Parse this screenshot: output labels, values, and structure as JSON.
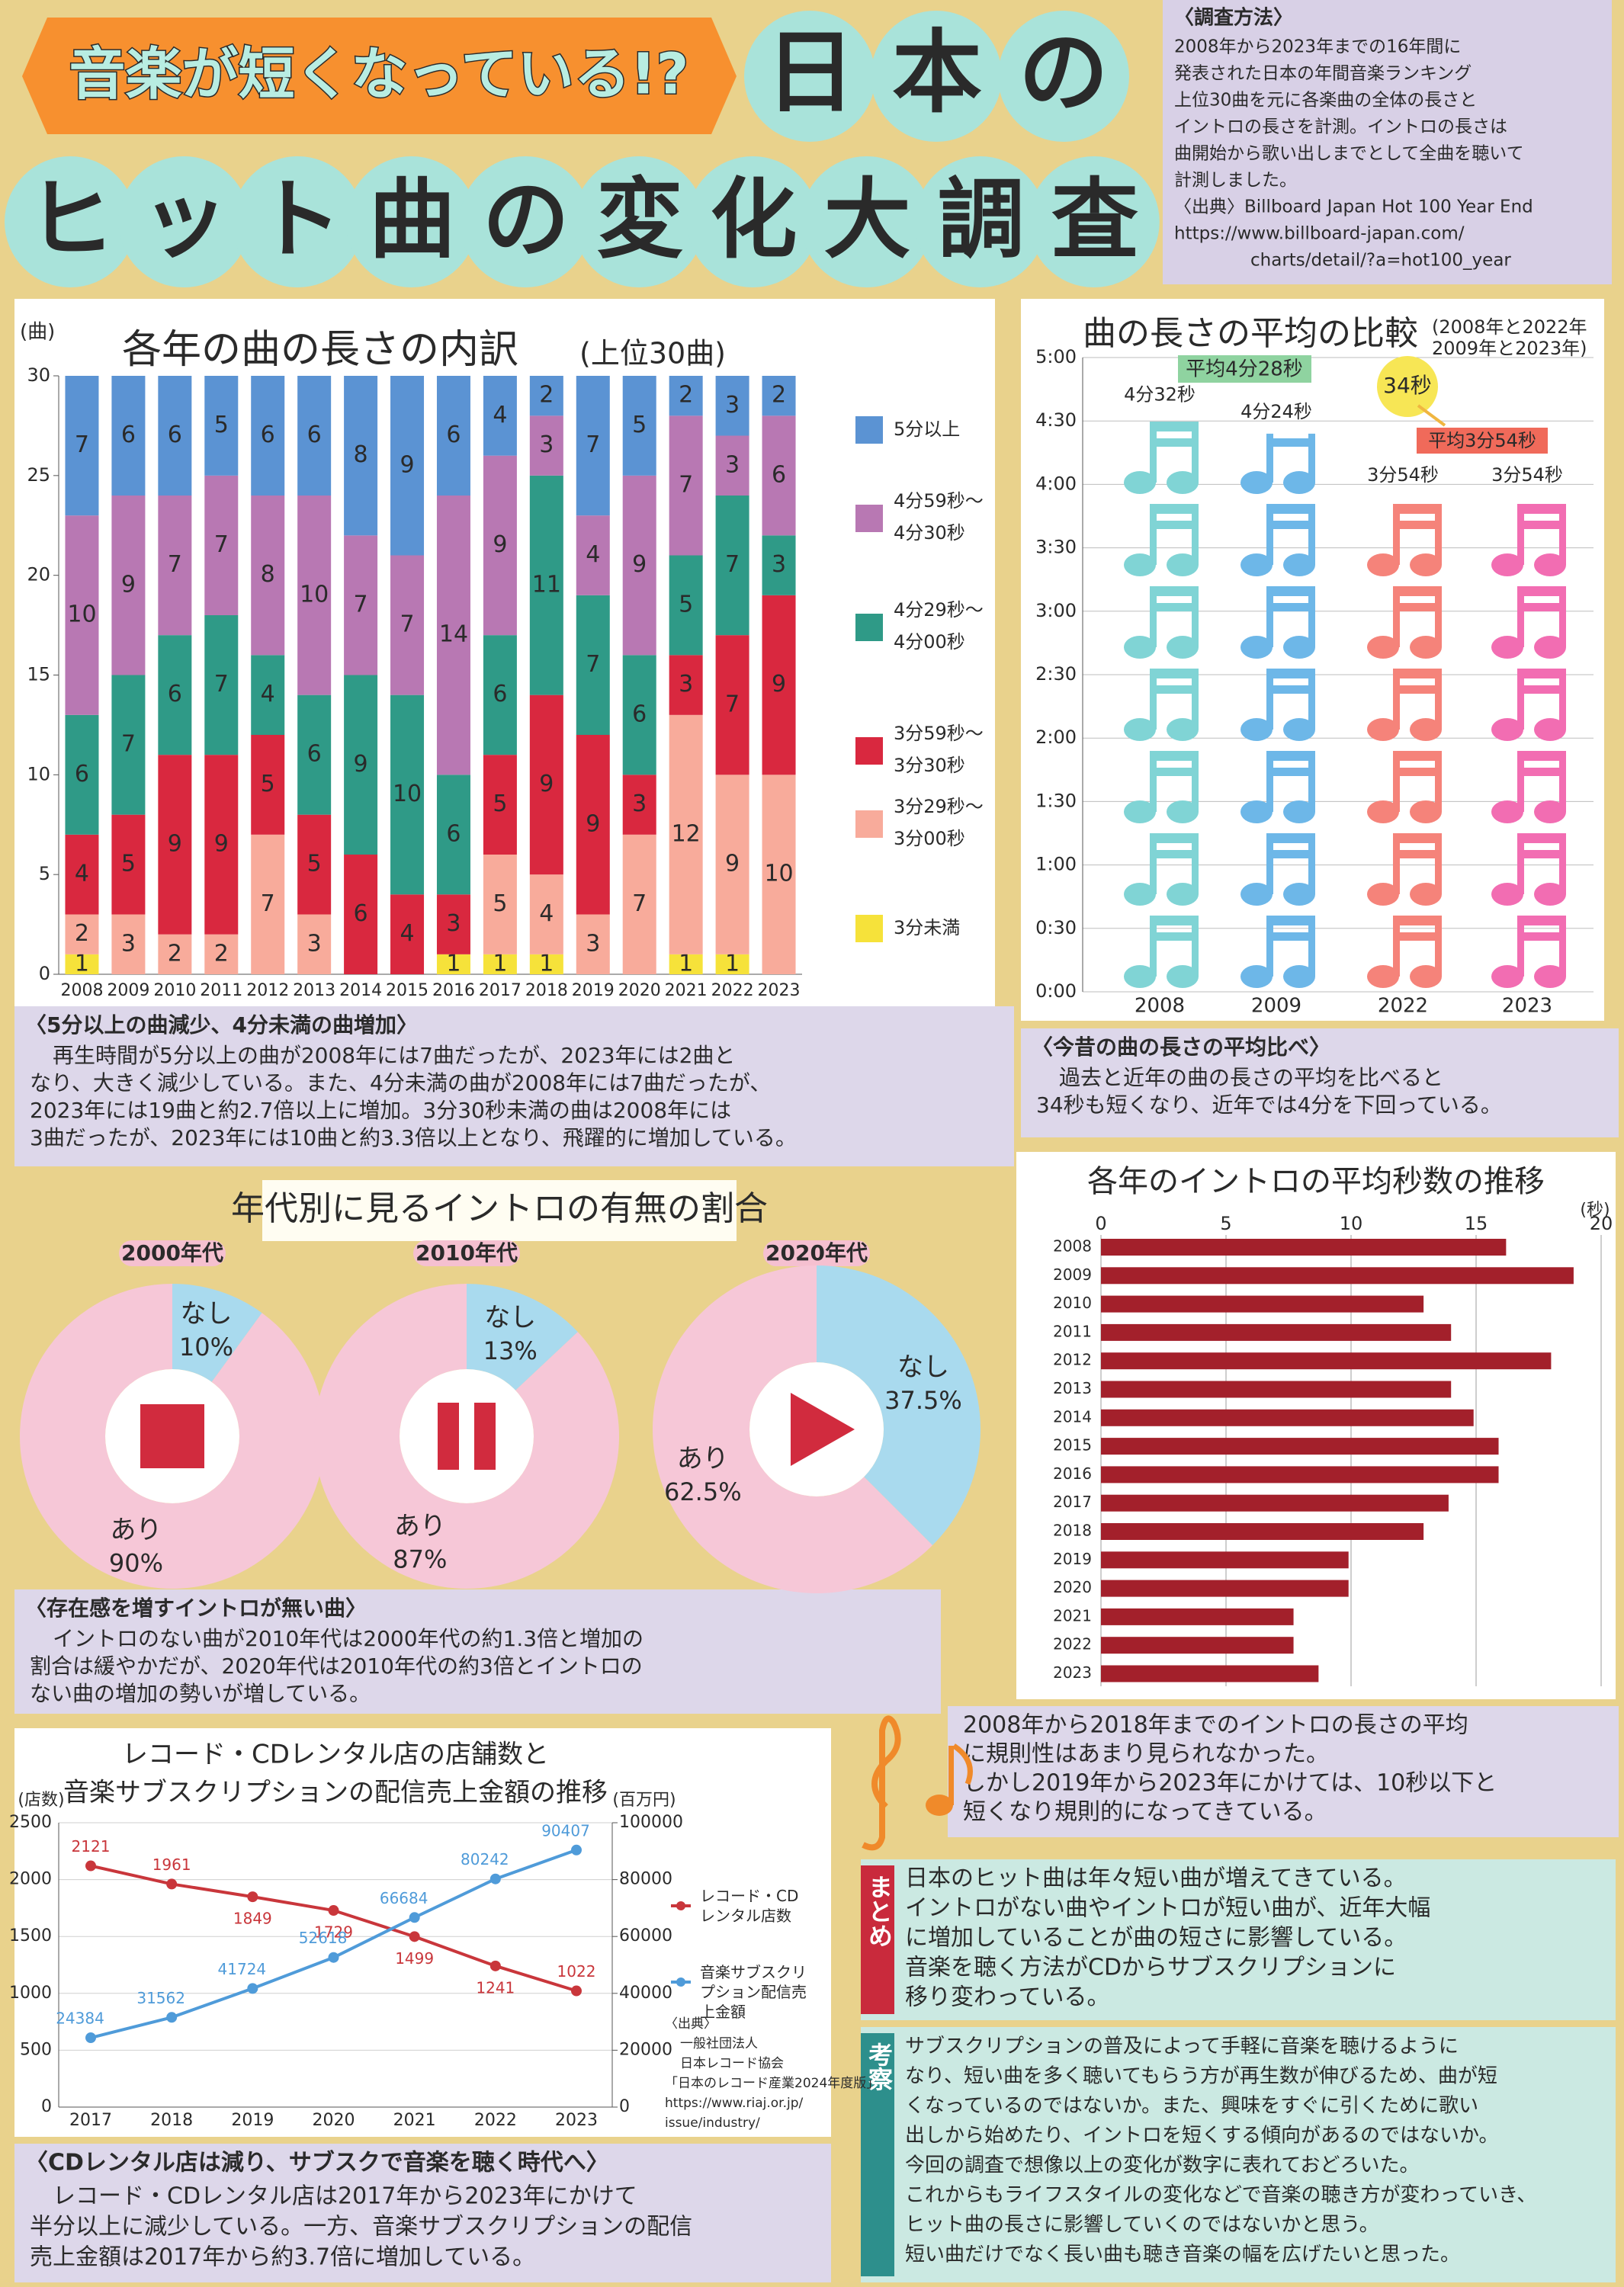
{
  "header": {
    "catch": "音楽が短くなっている!?",
    "title_1": "日本の",
    "title_2": "ヒット曲の変化大調査"
  },
  "method": {
    "heading": "〈調査方法〉",
    "lines": [
      "2008年から2023年までの16年間に",
      "発表された日本の年間音楽ランキング",
      "上位30曲を元に各楽曲の全体の長さと",
      "イントロの長さを計測。イントロの長さは",
      "曲開始から歌い出しまでとして全曲を聴いて",
      "計測しました。",
      "〈出典〉Billboard Japan Hot 100 Year End",
      "https://www.billboard-japan.com/",
      "charts/detail/?a=hot100_year"
    ]
  },
  "chart_data": [
    {
      "type": "bar",
      "stacked": true,
      "title": "各年の曲の長さの内訳",
      "subtitle": "(上位30曲)",
      "y_label": "(曲)",
      "categories": [
        "2008",
        "2009",
        "2010",
        "2011",
        "2012",
        "2013",
        "2014",
        "2015",
        "2016",
        "2017",
        "2018",
        "2019",
        "2020",
        "2021",
        "2022",
        "2023"
      ],
      "series": [
        {
          "name": "5分以上",
          "color": "#5b93d3",
          "values": [
            7,
            6,
            6,
            5,
            6,
            6,
            8,
            9,
            6,
            4,
            2,
            7,
            5,
            2,
            3,
            2
          ]
        },
        {
          "name": "4分59秒〜4分30秒",
          "color": "#b878b3",
          "values": [
            10,
            9,
            7,
            7,
            8,
            10,
            7,
            7,
            14,
            9,
            3,
            4,
            9,
            7,
            3,
            6
          ]
        },
        {
          "name": "4分29秒〜4分00秒",
          "color": "#2f9a87",
          "values": [
            6,
            7,
            6,
            7,
            4,
            6,
            9,
            10,
            6,
            6,
            11,
            7,
            6,
            5,
            7,
            3
          ]
        },
        {
          "name": "3分59秒〜3分30秒",
          "color": "#d9283f",
          "values": [
            4,
            5,
            9,
            9,
            5,
            5,
            6,
            4,
            3,
            5,
            9,
            9,
            3,
            3,
            7,
            9
          ]
        },
        {
          "name": "3分29秒〜3分00秒",
          "color": "#f8ab9b",
          "values": [
            2,
            3,
            2,
            2,
            7,
            3,
            0,
            0,
            0,
            5,
            4,
            3,
            7,
            12,
            9,
            10
          ]
        },
        {
          "name": "3分未満",
          "color": "#f6e23a",
          "values": [
            1,
            0,
            0,
            0,
            0,
            0,
            0,
            0,
            1,
            1,
            1,
            0,
            0,
            1,
            1,
            0
          ]
        }
      ],
      "ylim": [
        0,
        30
      ],
      "yticks": [
        0,
        5,
        10,
        15,
        20,
        25,
        30
      ]
    },
    {
      "type": "pictogram",
      "title": "曲の長さの平均の比較",
      "subtitle": [
        "(2008年と2022年",
        "2009年と2023年)"
      ],
      "categories": [
        "2008",
        "2009",
        "2022",
        "2023"
      ],
      "values": [
        272,
        264,
        234,
        234
      ],
      "value_labels": [
        "4分32秒",
        "4分24秒",
        "3分54秒",
        "3分54秒"
      ],
      "colors": [
        "#80d4d5",
        "#6db7e8",
        "#f5837a",
        "#f26db2"
      ],
      "ylim": [
        0,
        300
      ],
      "yticks": [
        {
          "value": 0,
          "label": "0:00"
        },
        {
          "value": 30,
          "label": "0:30"
        },
        {
          "value": 60,
          "label": "1:00"
        },
        {
          "value": 90,
          "label": "1:30"
        },
        {
          "value": 120,
          "label": "2:00"
        },
        {
          "value": 150,
          "label": "2:30"
        },
        {
          "value": 180,
          "label": "3:00"
        },
        {
          "value": 210,
          "label": "3:30"
        },
        {
          "value": 240,
          "label": "4:00"
        },
        {
          "value": 270,
          "label": "4:30"
        },
        {
          "value": 300,
          "label": "5:00"
        }
      ],
      "grid": true,
      "annotations": [
        "平均4分28秒",
        "34秒",
        "平均3分54秒"
      ]
    },
    {
      "type": "donut",
      "title": "年代別に見るイントロの有無の割合",
      "colors": [
        "#a9daee",
        "#f6c7d7"
      ],
      "groups": [
        {
          "name": "2000年代",
          "categories": [
            "なし",
            "あり"
          ],
          "values": [
            10,
            90
          ],
          "value_labels": [
            "10%",
            "90%"
          ]
        },
        {
          "name": "2010年代",
          "categories": [
            "なし",
            "あり"
          ],
          "values": [
            13,
            87
          ],
          "value_labels": [
            "13%",
            "87%"
          ]
        },
        {
          "name": "2020年代",
          "categories": [
            "なし",
            "あり"
          ],
          "values": [
            37.5,
            62.5
          ],
          "value_labels": [
            "37.5%",
            "62.5%"
          ]
        }
      ]
    },
    {
      "type": "bar",
      "orientation": "horizontal",
      "title": "各年のイントロの平均秒数の推移",
      "x_label": "(秒)",
      "categories": [
        "2008",
        "2009",
        "2010",
        "2011",
        "2012",
        "2013",
        "2014",
        "2015",
        "2016",
        "2017",
        "2018",
        "2019",
        "2020",
        "2021",
        "2022",
        "2023"
      ],
      "values": [
        16.2,
        18.9,
        12.9,
        14,
        18,
        14,
        14.9,
        15.9,
        15.9,
        13.9,
        12.9,
        9.9,
        9.9,
        7.7,
        7.7,
        8.7
      ],
      "color": "#a3202b",
      "xlim": [
        0,
        20
      ],
      "xticks": [
        0,
        5,
        10,
        15,
        20
      ],
      "grid": true
    },
    {
      "type": "line",
      "title": [
        "レコード・CDレンタル店の店舗数と",
        "音楽サブスクリプションの配信売上金額の推移"
      ],
      "y_label": "(店数)",
      "y2_label": "(百万円)",
      "categories": [
        "2017",
        "2018",
        "2019",
        "2020",
        "2021",
        "2022",
        "2023"
      ],
      "series": [
        {
          "name": "レコード・CDレンタル店数",
          "color": "#c9363b",
          "values": [
            2121,
            1961,
            1849,
            1729,
            1499,
            1241,
            1022
          ]
        },
        {
          "name": "音楽サブスクリプション配信売上金額",
          "color": "#4f9bd9",
          "axis": "y2",
          "values": [
            24384,
            31562,
            41724,
            52618,
            66684,
            80242,
            90407
          ]
        }
      ],
      "ylim": [
        0,
        2500
      ],
      "yticks": [
        0,
        500,
        1000,
        1500,
        2000,
        2500
      ],
      "y2lim": [
        0,
        100000
      ],
      "y2ticks": [
        0,
        20000,
        40000,
        60000,
        80000,
        100000
      ],
      "grid": true,
      "source": [
        "〈出典〉",
        "一般社団法人",
        "日本レコード協会",
        "「日本のレコード産業2024年度版」",
        "https://www.riaj.or.jp/",
        "issue/industry/"
      ]
    }
  ],
  "notes": [
    {
      "heading": "〈5分以上の曲減少、4分未満の曲増加〉",
      "lines": [
        "再生時間が5分以上の曲が2008年には7曲だったが、2023年には2曲と",
        "なり、大きく減少している。また、4分未満の曲が2008年には7曲だったが、",
        "2023年には19曲と約2.7倍以上に増加。3分30秒未満の曲は2008年には",
        "3曲だったが、2023年には10曲と約3.3倍以上となり、飛躍的に増加している。"
      ]
    },
    {
      "heading": "〈今昔の曲の長さの平均比べ〉",
      "lines": [
        "過去と近年の曲の長さの平均を比べると",
        "34秒も短くなり、近年では4分を下回っている。"
      ]
    },
    {
      "heading": "〈存在感を増すイントロが無い曲〉",
      "lines": [
        "イントロのない曲が2010年代は2000年代の約1.3倍と増加の",
        "割合は緩やかだが、2020年代は2010年代の約3倍とイントロの",
        "ない曲の増加の勢いが増している。"
      ]
    },
    {
      "lines": [
        "2008年から2018年までのイントロの長さの平均",
        "に規則性はあまり見られなかった。",
        "しかし2019年から2023年にかけては、10秒以下と",
        "短くなり規則的になってきている。"
      ]
    },
    {
      "heading": "まとめ",
      "lines": [
        "日本のヒット曲は年々短い曲が増えてきている。",
        "イントロがない曲やイントロが短い曲が、近年大幅",
        "に増加していることが曲の短さに影響している。",
        "音楽を聴く方法がCDからサブスクリプションに",
        "移り変わっている。"
      ]
    },
    {
      "heading": "考察",
      "lines": [
        "サブスクリプションの普及によって手軽に音楽を聴けるように",
        "なり、短い曲を多く聴いてもらう方が再生数が伸びるため、曲が短",
        "くなっているのではないか。また、興味をすぐに引くために歌い",
        "出しから始めたり、イントロを短くする傾向があるのではないか。",
        "今回の調査で想像以上の変化が数字に表れておどろいた。",
        "これからもライフスタイルの変化などで音楽の聴き方が変わっていき、",
        "ヒット曲の長さに影響していくのではないかと思う。",
        "短い曲だけでなく長い曲も聴き音楽の幅を広げたいと思った。"
      ]
    },
    {
      "heading": "〈CDレンタル店は減り、サブスクで音楽を聴く時代へ〉",
      "lines": [
        "レコード・CDレンタル店は2017年から2023年にかけて",
        "半分以上に減少している。一方、音楽サブスクリプションの配信",
        "売上金額は2017年から約3.7倍に増加している。"
      ]
    }
  ]
}
